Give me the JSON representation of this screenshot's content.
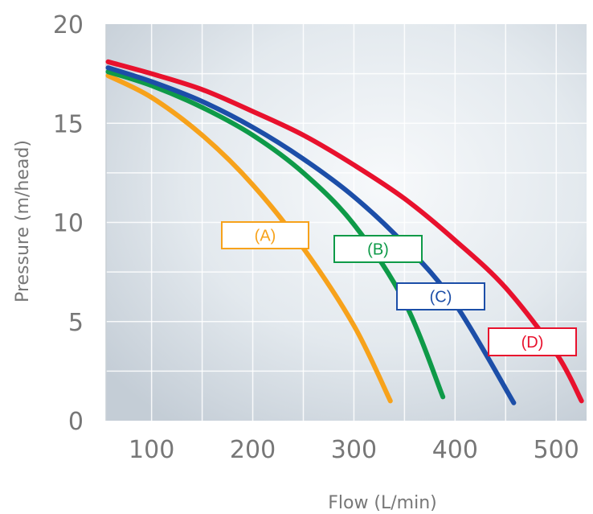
{
  "chart_data": {
    "type": "line",
    "xlabel": "Flow (L/min)",
    "ylabel": "Pressure (m/head)",
    "xlim": [
      55,
      530
    ],
    "ylim": [
      0,
      20
    ],
    "x_ticks": [
      "100",
      "200",
      "300",
      "400",
      "500"
    ],
    "y_ticks": [
      "0",
      "5",
      "10",
      "15",
      "20"
    ],
    "grid": true,
    "series": [
      {
        "name": "(A)",
        "color": "#f7a21b",
        "x": [
          57,
          100,
          150,
          200,
          250,
          300,
          336
        ],
        "y": [
          17.4,
          16.3,
          14.4,
          11.9,
          8.7,
          4.8,
          1.0
        ]
      },
      {
        "name": "(B)",
        "color": "#0e9a48",
        "x": [
          57,
          100,
          150,
          200,
          250,
          300,
          350,
          388
        ],
        "y": [
          17.6,
          16.9,
          15.8,
          14.4,
          12.5,
          9.9,
          6.0,
          1.2
        ]
      },
      {
        "name": "(C)",
        "color": "#1c4ea8",
        "x": [
          57,
          100,
          150,
          200,
          250,
          300,
          350,
          400,
          458
        ],
        "y": [
          17.8,
          17.1,
          16.1,
          14.8,
          13.2,
          11.3,
          8.9,
          5.9,
          0.9
        ]
      },
      {
        "name": "(D)",
        "color": "#e8112d",
        "x": [
          57,
          100,
          150,
          200,
          250,
          300,
          350,
          400,
          450,
          500,
          525
        ],
        "y": [
          18.1,
          17.5,
          16.7,
          15.6,
          14.4,
          12.9,
          11.2,
          9.1,
          6.7,
          3.4,
          1.0
        ]
      }
    ]
  }
}
